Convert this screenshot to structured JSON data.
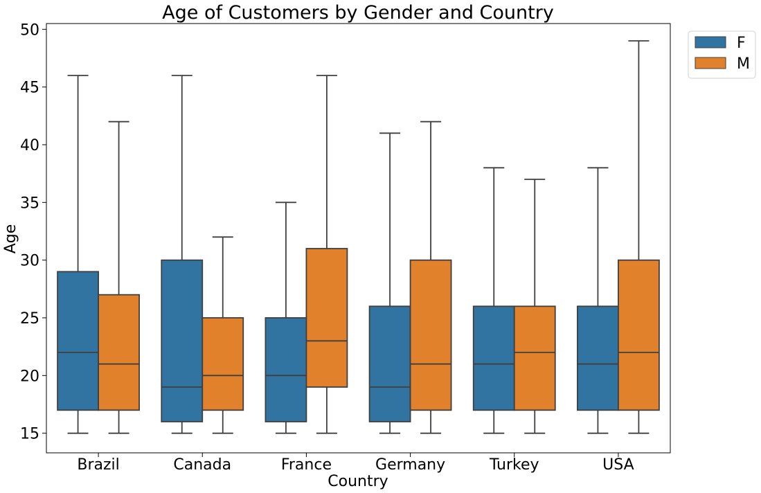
{
  "chart_data": {
    "type": "box",
    "title": "Age of Customers by Gender and Country",
    "xlabel": "Country",
    "ylabel": "Age",
    "ylim": [
      13.3,
      50.5
    ],
    "yticks": [
      15,
      20,
      25,
      30,
      35,
      40,
      45,
      50
    ],
    "grid": false,
    "legend_position": "outside-top-right",
    "categories": [
      "Brazil",
      "Canada",
      "France",
      "Germany",
      "Turkey",
      "USA"
    ],
    "series": [
      {
        "name": "F",
        "color": "#3274a1",
        "boxes": [
          {
            "whisker_low": 15,
            "q1": 17,
            "median": 22,
            "q3": 29,
            "whisker_high": 46
          },
          {
            "whisker_low": 15,
            "q1": 16,
            "median": 19,
            "q3": 30,
            "whisker_high": 46
          },
          {
            "whisker_low": 15,
            "q1": 16,
            "median": 20,
            "q3": 25,
            "whisker_high": 35
          },
          {
            "whisker_low": 15,
            "q1": 16,
            "median": 19,
            "q3": 26,
            "whisker_high": 41
          },
          {
            "whisker_low": 15,
            "q1": 17,
            "median": 21,
            "q3": 26,
            "whisker_high": 38
          },
          {
            "whisker_low": 15,
            "q1": 17,
            "median": 21,
            "q3": 26,
            "whisker_high": 38
          }
        ]
      },
      {
        "name": "M",
        "color": "#e1812c",
        "boxes": [
          {
            "whisker_low": 15,
            "q1": 17,
            "median": 21,
            "q3": 27,
            "whisker_high": 42
          },
          {
            "whisker_low": 15,
            "q1": 17,
            "median": 20,
            "q3": 25,
            "whisker_high": 32
          },
          {
            "whisker_low": 15,
            "q1": 19,
            "median": 23,
            "q3": 31,
            "whisker_high": 46
          },
          {
            "whisker_low": 15,
            "q1": 17,
            "median": 21,
            "q3": 30,
            "whisker_high": 42
          },
          {
            "whisker_low": 15,
            "q1": 17,
            "median": 22,
            "q3": 26,
            "whisker_high": 37
          },
          {
            "whisker_low": 15,
            "q1": 17,
            "median": 22,
            "q3": 30,
            "whisker_high": 49
          }
        ]
      }
    ]
  }
}
